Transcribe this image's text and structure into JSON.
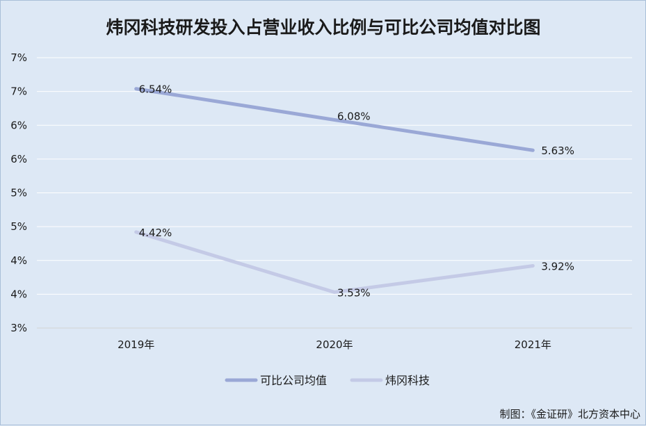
{
  "chart_data": {
    "type": "line",
    "title": "炜冈科技研发投入占营业收入比例与可比公司均值对比图",
    "categories": [
      "2019年",
      "2020年",
      "2021年"
    ],
    "series": [
      {
        "name": "可比公司均值",
        "values": [
          6.54,
          6.08,
          5.63
        ],
        "labels": [
          "6.54%",
          "6.08%",
          "5.63%"
        ],
        "color": "#9aa8d6"
      },
      {
        "name": "炜冈科技",
        "values": [
          4.42,
          3.53,
          3.92
        ],
        "labels": [
          "4.42%",
          "3.53%",
          "3.92%"
        ],
        "color": "#c4cae6"
      }
    ],
    "y_tick_labels": [
      "3%",
      "4%",
      "4%",
      "5%",
      "5%",
      "6%",
      "6%",
      "7%",
      "7%"
    ],
    "ylim": [
      3.0,
      7.0
    ],
    "y_step": 0.5,
    "grid": true,
    "legend_position": "bottom",
    "xlabel": "",
    "ylabel": ""
  },
  "source_note": "制图：《金证研》北方资本中心",
  "colors": {
    "background": "#dde8f5",
    "grid": "#ffffff",
    "text": "#1a1a1a"
  }
}
